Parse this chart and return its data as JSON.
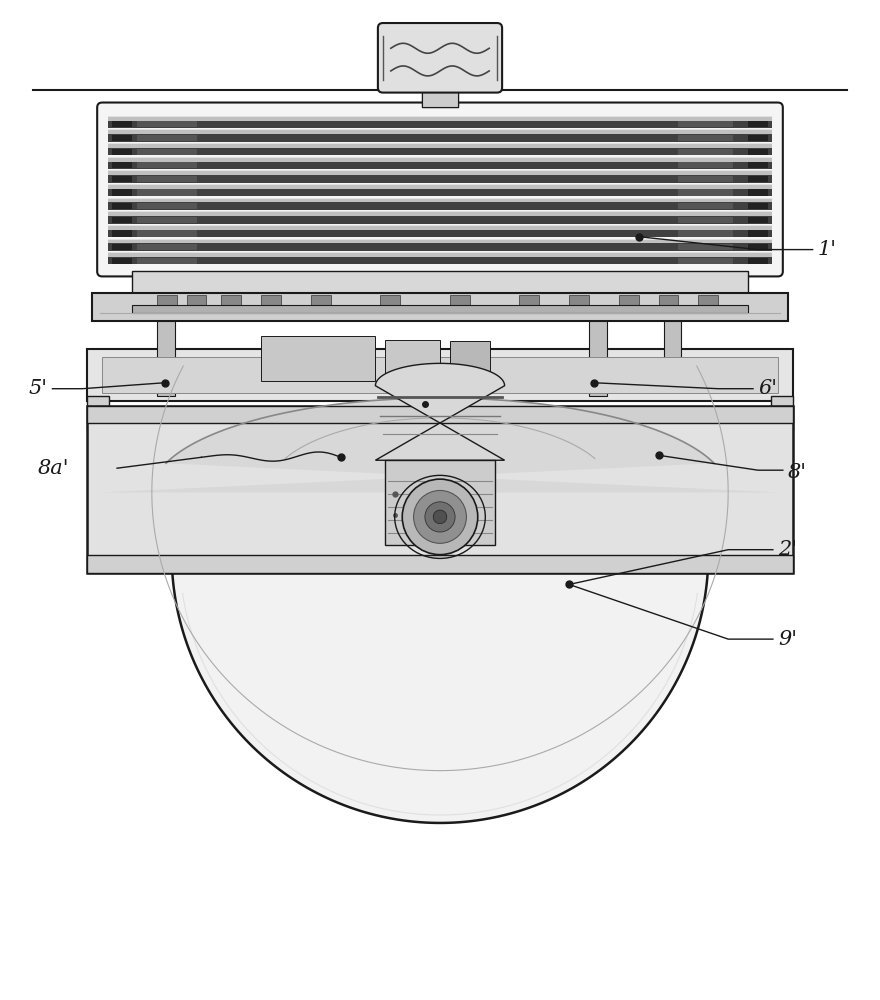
{
  "bg_color": "#ffffff",
  "line_color": "#1a1a1a",
  "fig_width": 8.8,
  "fig_height": 10.0
}
